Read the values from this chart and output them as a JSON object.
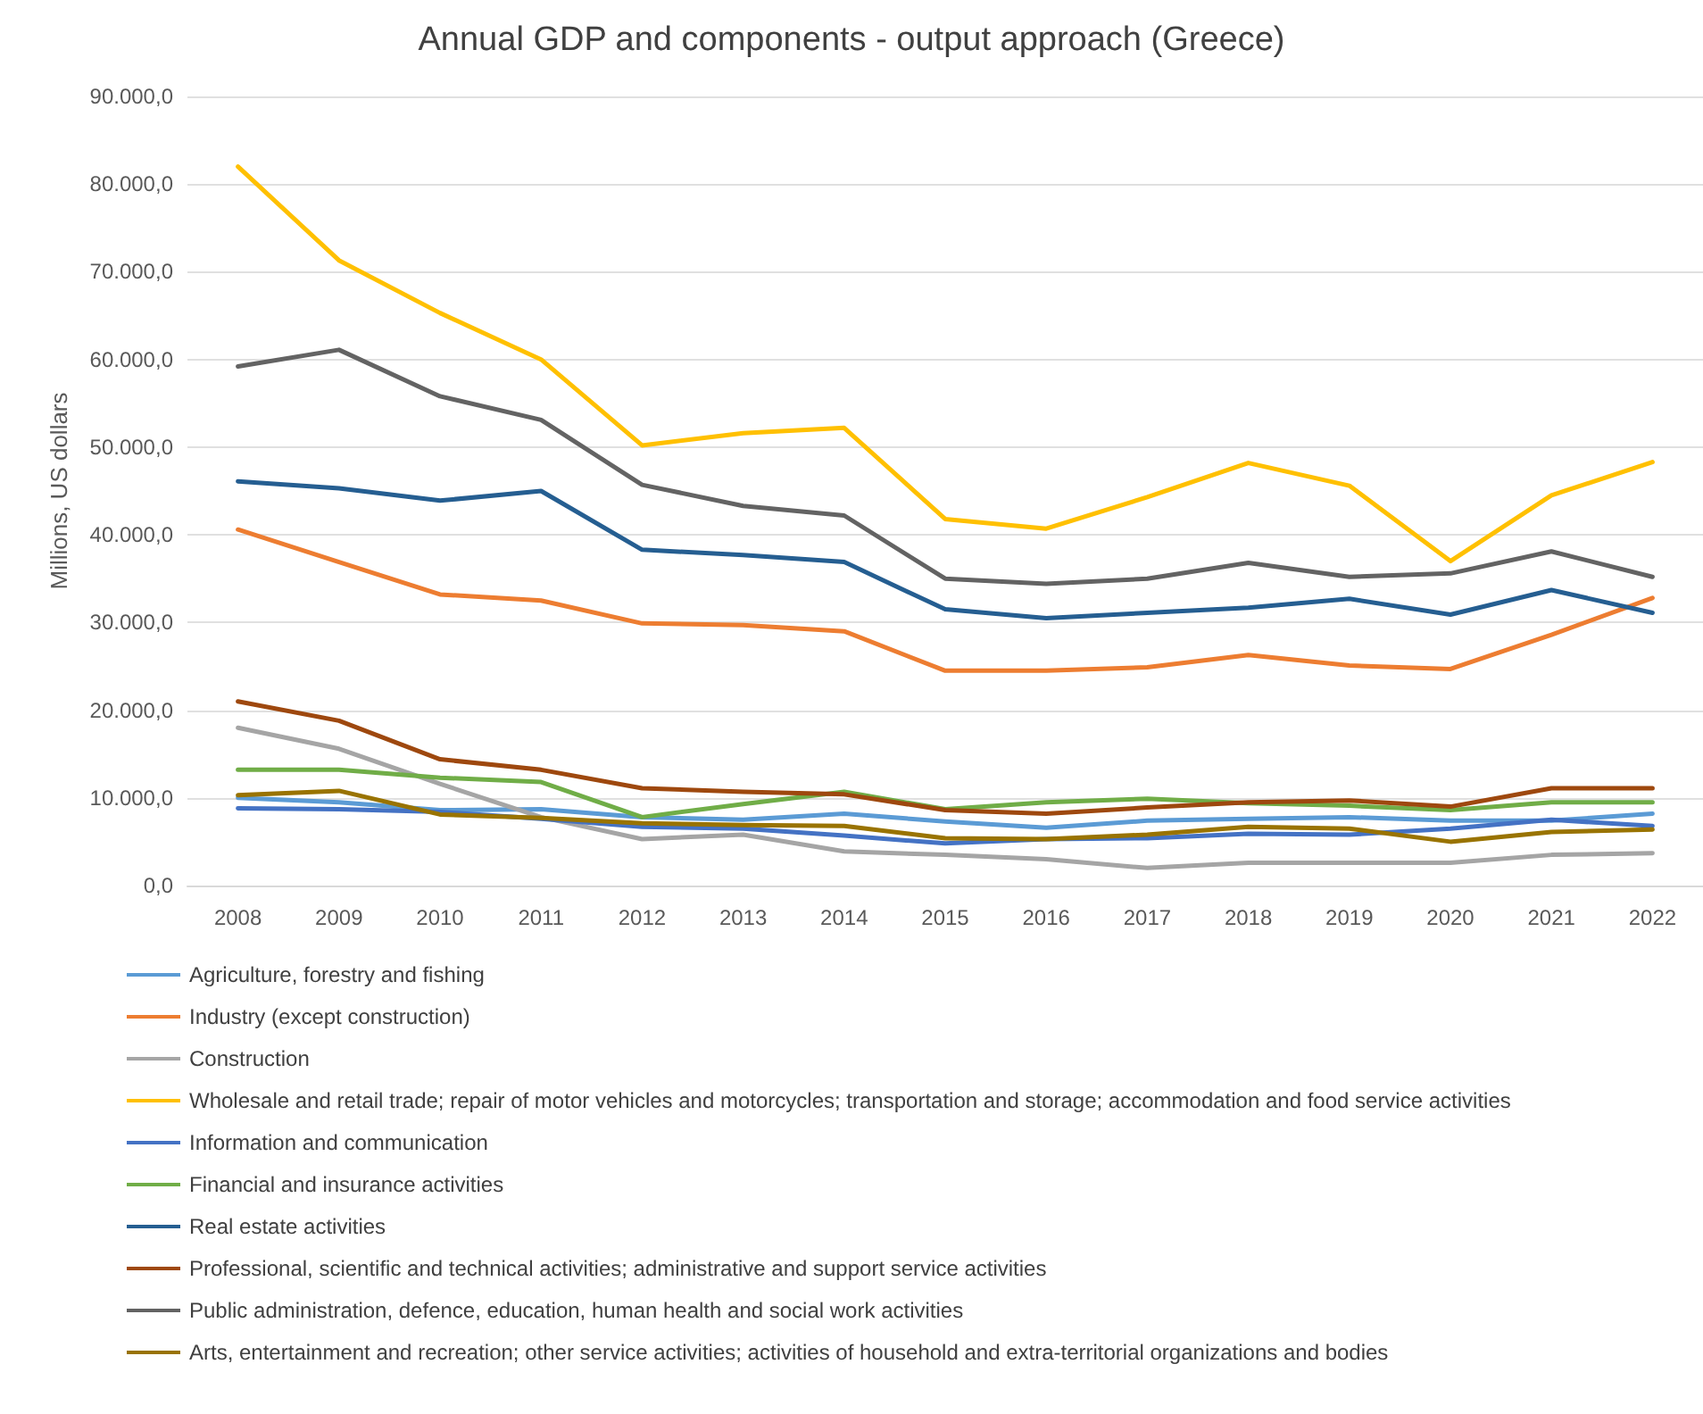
{
  "chart_data": {
    "type": "line",
    "title": "Annual GDP and components - output approach (Greece)",
    "ylabel": "Millions, US dollars",
    "categories": [
      "2008",
      "2009",
      "2010",
      "2011",
      "2012",
      "2013",
      "2014",
      "2015",
      "2016",
      "2017",
      "2018",
      "2019",
      "2020",
      "2021",
      "2022"
    ],
    "ylim": [
      0,
      90000
    ],
    "yticks": [
      {
        "value": 0,
        "label": "0,0"
      },
      {
        "value": 10000,
        "label": "10.000,0"
      },
      {
        "value": 20000,
        "label": "20.000,0"
      },
      {
        "value": 30000,
        "label": "30.000,0"
      },
      {
        "value": 40000,
        "label": "40.000,0"
      },
      {
        "value": 50000,
        "label": "50.000,0"
      },
      {
        "value": 60000,
        "label": "60.000,0"
      },
      {
        "value": 70000,
        "label": "70.000,0"
      },
      {
        "value": 80000,
        "label": "80.000,0"
      },
      {
        "value": 90000,
        "label": "90.000,0"
      }
    ],
    "grid": "y",
    "legend": "bottom",
    "marker": "none",
    "line_style": "solid",
    "series": [
      {
        "name": "Agriculture, forestry and fishing",
        "color": "#5b9bd5",
        "values": [
          10000,
          9500,
          8600,
          8700,
          7800,
          7500,
          8200,
          7300,
          6600,
          7400,
          7600,
          7800,
          7400,
          7400,
          8200
        ]
      },
      {
        "name": "Industry (except construction)",
        "color": "#ed7d31",
        "values": [
          40600,
          36900,
          33200,
          32500,
          29900,
          29700,
          29000,
          24500,
          24500,
          24900,
          26300,
          25100,
          24700,
          28600,
          32800
        ]
      },
      {
        "name": "Construction",
        "color": "#a5a5a5",
        "values": [
          18000,
          15600,
          11600,
          7800,
          5300,
          5800,
          3900,
          3500,
          3000,
          2000,
          2600,
          2600,
          2600,
          3500,
          3700
        ]
      },
      {
        "name": "Wholesale and retail trade; repair of motor vehicles and motorcycles; transportation and storage; accommodation and food service activities",
        "color": "#ffc000",
        "values": [
          82000,
          71300,
          65300,
          60000,
          50200,
          51600,
          52200,
          41800,
          40700,
          44300,
          48200,
          45600,
          37000,
          44500,
          48300
        ]
      },
      {
        "name": "Information and communication",
        "color": "#4472c4",
        "values": [
          8800,
          8700,
          8400,
          7600,
          6700,
          6500,
          5700,
          4800,
          5300,
          5400,
          5900,
          5800,
          6500,
          7500,
          6800
        ]
      },
      {
        "name": "Financial and insurance activities",
        "color": "#70ad47",
        "values": [
          13200,
          13200,
          12300,
          11800,
          7800,
          9300,
          10700,
          8700,
          9500,
          9900,
          9400,
          9100,
          8600,
          9500,
          9500
        ]
      },
      {
        "name": "Real estate activities",
        "color": "#255e91",
        "values": [
          46100,
          45300,
          43900,
          45000,
          38300,
          37700,
          36900,
          31500,
          30500,
          31100,
          31700,
          32700,
          30900,
          33700,
          31100
        ]
      },
      {
        "name": "Professional, scientific and technical activities; administrative and support service activities",
        "color": "#9e480e",
        "values": [
          21000,
          18800,
          14400,
          13200,
          11100,
          10700,
          10400,
          8600,
          8200,
          8900,
          9500,
          9700,
          9000,
          11100,
          11100
        ]
      },
      {
        "name": "Public administration, defence, education, human health and social work activities",
        "color": "#636363",
        "values": [
          59200,
          61100,
          55800,
          53100,
          45700,
          43300,
          42200,
          35000,
          34400,
          35000,
          36800,
          35200,
          35600,
          38100,
          35200
        ]
      },
      {
        "name": "Arts, entertainment and recreation; other service activities; activities of household and extra-territorial organizations and bodies",
        "color": "#997300",
        "values": [
          10300,
          10800,
          8100,
          7700,
          7100,
          6900,
          6800,
          5400,
          5300,
          5800,
          6700,
          6500,
          5000,
          6100,
          6400
        ]
      }
    ]
  }
}
